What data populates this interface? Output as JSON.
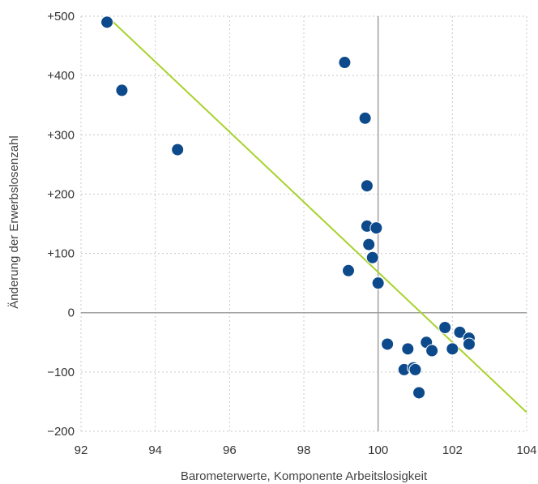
{
  "chart_data": {
    "type": "scatter",
    "xlabel": "Barometerwerte, Komponente Arbeitslosigkeit",
    "ylabel": "Änderung der Erwerbslosenzahl",
    "xlim": [
      92,
      104
    ],
    "ylim": [
      -200,
      500
    ],
    "x_ticks": [
      92,
      94,
      96,
      98,
      100,
      102,
      104
    ],
    "y_ticks": [
      -200,
      -100,
      0,
      100,
      200,
      300,
      400,
      500
    ],
    "x_tick_labels": [
      "92",
      "94",
      "96",
      "98",
      "100",
      "102",
      "104"
    ],
    "y_tick_labels": [
      "−200",
      "−100",
      "0",
      "+100",
      "+200",
      "+300",
      "+400",
      "+500"
    ],
    "grid": true,
    "legend": "none",
    "colors": {
      "points": "#0d4a8b",
      "trend": "#a8d22e",
      "grid": "#c8c8c8",
      "zero_line": "#a0a0a0"
    },
    "points": [
      {
        "x": 92.7,
        "y": 490
      },
      {
        "x": 93.1,
        "y": 375
      },
      {
        "x": 94.6,
        "y": 275
      },
      {
        "x": 99.1,
        "y": 422
      },
      {
        "x": 99.65,
        "y": 328
      },
      {
        "x": 99.7,
        "y": 214
      },
      {
        "x": 99.7,
        "y": 146
      },
      {
        "x": 99.95,
        "y": 143
      },
      {
        "x": 99.75,
        "y": 115
      },
      {
        "x": 99.85,
        "y": 93
      },
      {
        "x": 99.2,
        "y": 71
      },
      {
        "x": 100.0,
        "y": 50
      },
      {
        "x": 100.25,
        "y": -53
      },
      {
        "x": 100.8,
        "y": -61
      },
      {
        "x": 100.7,
        "y": -96
      },
      {
        "x": 100.95,
        "y": -93
      },
      {
        "x": 101.0,
        "y": -96
      },
      {
        "x": 101.1,
        "y": -135
      },
      {
        "x": 101.3,
        "y": -50
      },
      {
        "x": 101.45,
        "y": -64
      },
      {
        "x": 101.8,
        "y": -25
      },
      {
        "x": 102.0,
        "y": -61
      },
      {
        "x": 102.2,
        "y": -33
      },
      {
        "x": 102.45,
        "y": -43
      },
      {
        "x": 102.45,
        "y": -53
      }
    ],
    "trendline": {
      "x": [
        92.7,
        104
      ],
      "y": [
        500,
        -168
      ]
    }
  }
}
